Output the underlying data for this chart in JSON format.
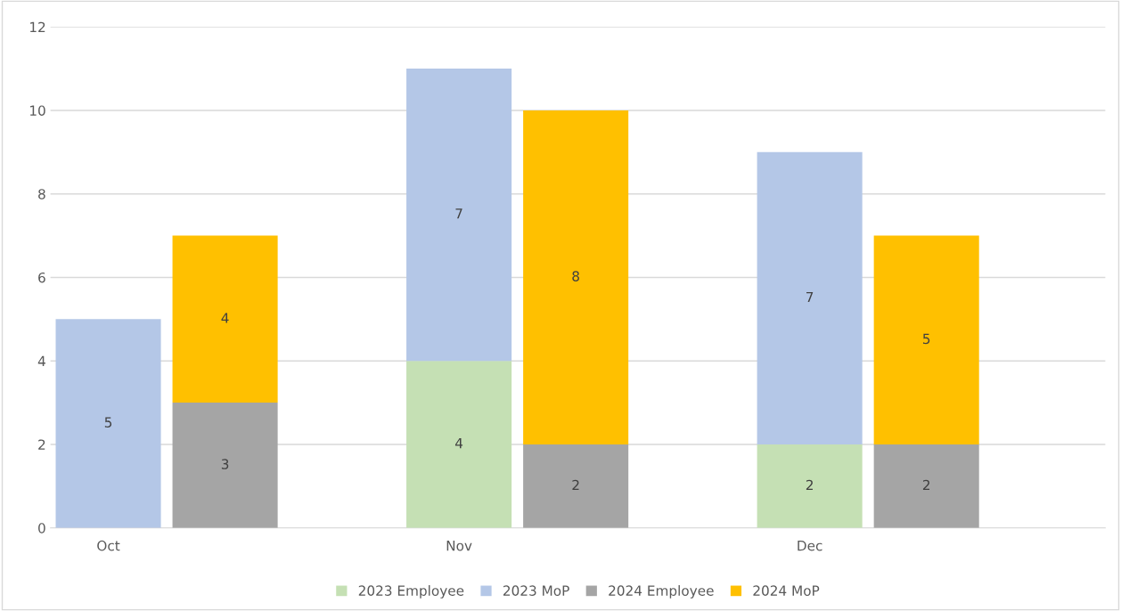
{
  "chart_data": {
    "type": "bar",
    "stacked": true,
    "categories": [
      "Oct",
      null,
      "Nov",
      null,
      "Dec",
      null
    ],
    "series": [
      {
        "name": "2023 Employee",
        "color": "#c5e0b4",
        "values": [
          null,
          null,
          4,
          null,
          2,
          null
        ]
      },
      {
        "name": "2023 MoP",
        "color": "#b4c7e7",
        "values": [
          5,
          null,
          7,
          null,
          7,
          null
        ]
      },
      {
        "name": "2024 Employee",
        "color": "#a5a5a5",
        "values": [
          null,
          3,
          null,
          2,
          null,
          2
        ]
      },
      {
        "name": "2024 MoP",
        "color": "#ffc000",
        "values": [
          null,
          4,
          null,
          8,
          null,
          5
        ]
      }
    ],
    "ylim": [
      0,
      12
    ],
    "yticks": [
      0,
      2,
      4,
      6,
      8,
      10,
      12
    ],
    "grid": "y",
    "legend": "bottom",
    "data_labels": true
  }
}
